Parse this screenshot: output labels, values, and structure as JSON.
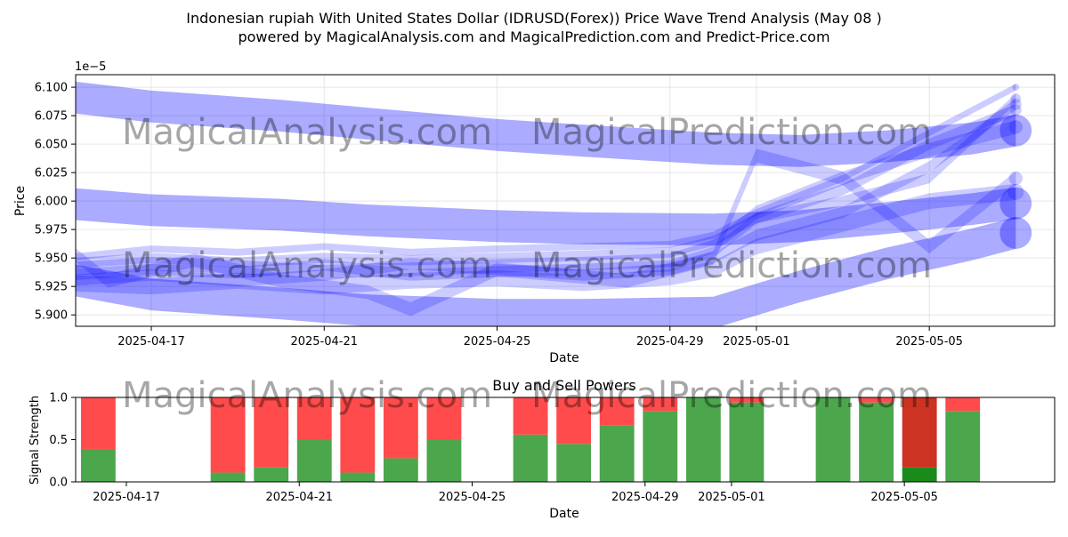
{
  "header": {
    "title_line1": "Indonesian rupiah With United States Dollar (IDRUSD(Forex)) Price Wave Trend Analysis (May 08 )",
    "title_line2": "powered by MagicalAnalysis.com and MagicalPrediction.com and Predict-Price.com"
  },
  "watermarks": [
    "MagicalAnalysis.com",
    "MagicalPrediction.com"
  ],
  "chart_data": [
    {
      "type": "area",
      "xlabel": "Date",
      "ylabel": "Price",
      "y_offset_label": "1e−5",
      "xlim": [
        "2025-04-15",
        "2025-05-07"
      ],
      "ylim": [
        5.89,
        6.111
      ],
      "y_ticks": [
        5.9,
        5.925,
        5.95,
        5.975,
        6.0,
        6.025,
        6.05,
        6.075,
        6.1
      ],
      "y_tick_labels": [
        "5.900",
        "5.925",
        "5.950",
        "5.975",
        "6.000",
        "6.025",
        "6.050",
        "6.075",
        "6.100"
      ],
      "x_ticks": [
        "2025-04-17",
        "2025-04-21",
        "2025-04-25",
        "2025-04-29",
        "2025-05-01",
        "2025-05-05"
      ],
      "grid": true,
      "color": "#0000ff",
      "series": [
        {
          "x": [
            "2025-04-15",
            "2025-04-17",
            "2025-04-20",
            "2025-04-22",
            "2025-04-25",
            "2025-04-27",
            "2025-04-30",
            "2025-05-02",
            "2025-05-04",
            "2025-05-06",
            "2025-05-07"
          ],
          "y": [
            6.092,
            6.083,
            6.075,
            6.068,
            6.058,
            6.053,
            6.046,
            6.044,
            6.048,
            6.055,
            6.062
          ],
          "band": 0.028
        },
        {
          "x": [
            "2025-04-15",
            "2025-04-17",
            "2025-04-20",
            "2025-04-22",
            "2025-04-25",
            "2025-04-27",
            "2025-04-30",
            "2025-05-02",
            "2025-05-04",
            "2025-05-06",
            "2025-05-07"
          ],
          "y": [
            5.998,
            5.992,
            5.988,
            5.983,
            5.978,
            5.976,
            5.975,
            5.978,
            5.985,
            5.993,
            5.998
          ],
          "band": 0.028
        },
        {
          "x": [
            "2025-04-15",
            "2025-04-17",
            "2025-04-20",
            "2025-04-22",
            "2025-04-25",
            "2025-04-27",
            "2025-04-30",
            "2025-05-02",
            "2025-05-04",
            "2025-05-06",
            "2025-05-07"
          ],
          "y": [
            5.932,
            5.918,
            5.91,
            5.904,
            5.9,
            5.9,
            5.902,
            5.925,
            5.945,
            5.962,
            5.972
          ],
          "band": 0.028
        },
        {
          "x": [
            "2025-04-15",
            "2025-04-17",
            "2025-04-19",
            "2025-04-21",
            "2025-04-23",
            "2025-04-25",
            "2025-04-27",
            "2025-04-29",
            "2025-04-30",
            "2025-05-01",
            "2025-05-03",
            "2025-05-05",
            "2025-05-07"
          ],
          "y": [
            5.94,
            5.945,
            5.942,
            5.938,
            5.94,
            5.943,
            5.945,
            5.948,
            5.96,
            5.99,
            6.02,
            6.045,
            6.065
          ],
          "band": 0.012
        },
        {
          "x": [
            "2025-04-15",
            "2025-04-17",
            "2025-04-19",
            "2025-04-21",
            "2025-04-23",
            "2025-04-25",
            "2025-04-27",
            "2025-04-29",
            "2025-04-30",
            "2025-05-01",
            "2025-05-03",
            "2025-05-05",
            "2025-05-07"
          ],
          "y": [
            5.935,
            5.94,
            5.937,
            5.944,
            5.935,
            5.938,
            5.94,
            5.943,
            5.955,
            5.985,
            6.01,
            6.05,
            6.08
          ],
          "band": 0.01
        },
        {
          "x": [
            "2025-04-15",
            "2025-04-17",
            "2025-04-19",
            "2025-04-21",
            "2025-04-23",
            "2025-04-25",
            "2025-04-27",
            "2025-04-29",
            "2025-04-30",
            "2025-05-01",
            "2025-05-03",
            "2025-05-05",
            "2025-05-07"
          ],
          "y": [
            5.93,
            5.935,
            5.93,
            5.935,
            5.945,
            5.94,
            5.935,
            5.94,
            5.95,
            5.97,
            5.99,
            6.03,
            6.085
          ],
          "band": 0.01
        },
        {
          "x": [
            "2025-04-15",
            "2025-04-16",
            "2025-04-18",
            "2025-04-20",
            "2025-04-22",
            "2025-04-23",
            "2025-04-25",
            "2025-04-28",
            "2025-04-30",
            "2025-05-01",
            "2025-05-03",
            "2025-05-05",
            "2025-05-07"
          ],
          "y": [
            5.96,
            5.93,
            5.948,
            5.93,
            5.92,
            5.905,
            5.94,
            5.93,
            5.95,
            6.04,
            6.02,
            5.96,
            6.02
          ],
          "band": 0.012
        },
        {
          "x": [
            "2025-04-15",
            "2025-04-17",
            "2025-04-19",
            "2025-04-21",
            "2025-04-23",
            "2025-04-25",
            "2025-04-27",
            "2025-04-29",
            "2025-04-30",
            "2025-05-01",
            "2025-05-03",
            "2025-05-05",
            "2025-05-07"
          ],
          "y": [
            5.945,
            5.95,
            5.946,
            5.95,
            5.948,
            5.95,
            5.952,
            5.955,
            5.965,
            5.985,
            6.0,
            6.02,
            6.09
          ],
          "band": 0.009
        },
        {
          "x": [
            "2025-04-15",
            "2025-04-17",
            "2025-04-19",
            "2025-04-21",
            "2025-04-23",
            "2025-04-25",
            "2025-04-27",
            "2025-04-29",
            "2025-04-30",
            "2025-05-01",
            "2025-05-03",
            "2025-05-05",
            "2025-05-07"
          ],
          "y": [
            5.928,
            5.925,
            5.93,
            5.925,
            5.93,
            5.932,
            5.928,
            5.933,
            5.94,
            5.96,
            5.98,
            6.0,
            6.008
          ],
          "band": 0.014
        },
        {
          "x": [
            "2025-04-15",
            "2025-04-17",
            "2025-04-19",
            "2025-04-21",
            "2025-04-23",
            "2025-04-25",
            "2025-04-27",
            "2025-04-29",
            "2025-04-30",
            "2025-05-01",
            "2025-05-03",
            "2025-05-05",
            "2025-05-07"
          ],
          "y": [
            5.95,
            5.958,
            5.955,
            5.96,
            5.955,
            5.958,
            5.96,
            5.962,
            5.97,
            5.99,
            6.02,
            6.06,
            6.1
          ],
          "band": 0.006
        }
      ]
    },
    {
      "type": "bar",
      "title": "Buy and Sell Powers",
      "xlabel": "Date",
      "ylabel": "Signal Strength",
      "xlim": [
        "2025-04-15",
        "2025-05-07"
      ],
      "ylim": [
        0,
        1
      ],
      "y_ticks": [
        0,
        0.5,
        1
      ],
      "y_tick_labels": [
        "0.0",
        "0.5",
        "1.0"
      ],
      "x_ticks": [
        "2025-04-17",
        "2025-04-21",
        "2025-04-25",
        "2025-04-29",
        "2025-05-01",
        "2025-05-05"
      ],
      "series": [
        {
          "name": "buy",
          "color": "#4ca64c"
        },
        {
          "name": "sell",
          "color": "#ff4b4b"
        }
      ],
      "categories": [
        "2025-04-16",
        "2025-04-19",
        "2025-04-20",
        "2025-04-21",
        "2025-04-22",
        "2025-04-23",
        "2025-04-24",
        "2025-04-26",
        "2025-04-27",
        "2025-04-28",
        "2025-04-29",
        "2025-04-30",
        "2025-05-01",
        "2025-05-03",
        "2025-05-04",
        "2025-05-05",
        "2025-05-06"
      ],
      "buy": [
        0.39,
        0.11,
        0.17,
        0.5,
        0.11,
        0.28,
        0.5,
        0.56,
        0.45,
        0.67,
        0.84,
        1.0,
        0.94,
        1.0,
        0.94,
        0.17,
        0.84
      ],
      "sell": [
        0.61,
        0.89,
        0.83,
        0.5,
        0.89,
        0.72,
        0.5,
        0.44,
        0.55,
        0.33,
        0.16,
        0.0,
        0.06,
        0.0,
        0.06,
        0.83,
        0.16
      ],
      "highlight_index": 15,
      "highlight_colors": {
        "buy": "#1a8a1a",
        "sell": "#cc3322"
      }
    }
  ]
}
